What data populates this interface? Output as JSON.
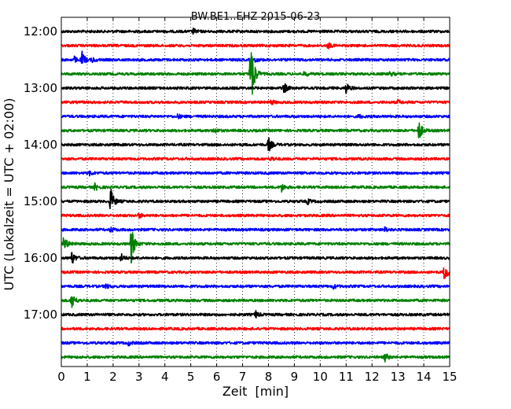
{
  "chart_data": {
    "type": "line",
    "title": "BW.BE1..EHZ 2015-06-23",
    "xlabel": "Zeit  [min]",
    "ylabel": "UTC (Lokalzeit = UTC + 02:00)",
    "xlim": [
      0,
      15
    ],
    "x_ticks": [
      0,
      1,
      2,
      3,
      4,
      5,
      6,
      7,
      8,
      9,
      10,
      11,
      12,
      13,
      14,
      15
    ],
    "x_tick_labels": [
      "0",
      "1",
      "2",
      "3",
      "4",
      "5",
      "6",
      "7",
      "8",
      "9",
      "10",
      "11",
      "12",
      "13",
      "14",
      "15"
    ],
    "y_tick_labels": [
      "12:00",
      "13:00",
      "14:00",
      "15:00",
      "16:00",
      "17:00"
    ],
    "traces_per_hour": 4,
    "trace_minutes": 15,
    "grid": "vertical dotted",
    "color_cycle": [
      "#000000",
      "#ff0000",
      "#0000ff",
      "#008000"
    ],
    "series": [
      {
        "start": "12:00",
        "events": [
          [
            5.1,
            0.18
          ]
        ]
      },
      {
        "start": "12:15",
        "events": [
          [
            10.3,
            0.2
          ]
        ]
      },
      {
        "start": "12:30",
        "events": [
          [
            0.5,
            0.2
          ],
          [
            0.8,
            0.55
          ],
          [
            1.2,
            0.15
          ],
          [
            7.5,
            0.12
          ]
        ]
      },
      {
        "start": "12:45",
        "events": [
          [
            7.3,
            2.6
          ],
          [
            7.4,
            0.4
          ],
          [
            9.4,
            0.2
          ],
          [
            12.7,
            0.15
          ]
        ]
      },
      {
        "start": "13:00",
        "events": [
          [
            8.6,
            0.35
          ],
          [
            11.0,
            0.4
          ]
        ]
      },
      {
        "start": "13:15",
        "events": [
          [
            8.1,
            0.15
          ],
          [
            13.0,
            0.15
          ]
        ]
      },
      {
        "start": "13:30",
        "events": [
          [
            4.5,
            0.15
          ],
          [
            11.5,
            0.12
          ]
        ]
      },
      {
        "start": "13:45",
        "events": [
          [
            5.9,
            0.2
          ],
          [
            13.8,
            0.8
          ]
        ]
      },
      {
        "start": "14:00",
        "events": [
          [
            8.0,
            0.55
          ]
        ]
      },
      {
        "start": "14:15",
        "events": [
          [
            8.1,
            0.15
          ]
        ]
      },
      {
        "start": "14:30",
        "events": [
          [
            1.1,
            0.15
          ]
        ]
      },
      {
        "start": "14:45",
        "events": [
          [
            1.3,
            0.25
          ],
          [
            8.5,
            0.3
          ]
        ]
      },
      {
        "start": "15:00",
        "events": [
          [
            1.9,
            1.0
          ],
          [
            9.5,
            0.2
          ]
        ]
      },
      {
        "start": "15:15",
        "events": [
          [
            3.0,
            0.15
          ]
        ]
      },
      {
        "start": "15:30",
        "events": [
          [
            1.9,
            0.2
          ],
          [
            12.5,
            0.15
          ]
        ]
      },
      {
        "start": "15:45",
        "events": [
          [
            0.1,
            0.55
          ],
          [
            2.7,
            1.4
          ]
        ]
      },
      {
        "start": "16:00",
        "events": [
          [
            0.4,
            0.5
          ],
          [
            2.3,
            0.3
          ]
        ]
      },
      {
        "start": "16:15",
        "events": [
          [
            14.8,
            0.7
          ]
        ]
      },
      {
        "start": "16:30",
        "events": [
          [
            1.7,
            0.2
          ],
          [
            10.5,
            0.15
          ]
        ]
      },
      {
        "start": "16:45",
        "events": [
          [
            0.4,
            0.6
          ]
        ]
      },
      {
        "start": "17:00",
        "events": [
          [
            7.5,
            0.25
          ]
        ]
      },
      {
        "start": "17:15",
        "events": []
      },
      {
        "start": "17:30",
        "events": [
          [
            2.6,
            0.15
          ]
        ]
      },
      {
        "start": "17:45",
        "events": [
          [
            12.5,
            0.3
          ]
        ]
      }
    ]
  }
}
